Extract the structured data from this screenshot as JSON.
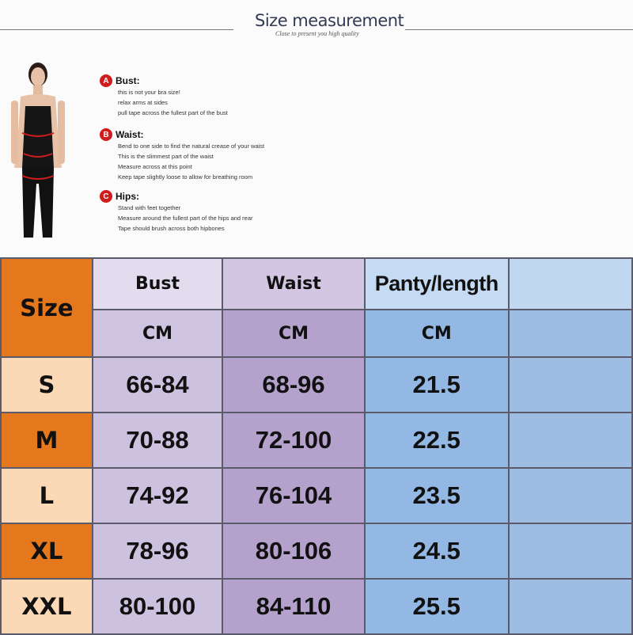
{
  "header": {
    "title": "Size measurement",
    "subtitle": "Close to present you high quality"
  },
  "guide": [
    {
      "badge": "A",
      "title": "Bust:",
      "lines": [
        "this is not your bra size!",
        "relax arms at sides",
        "pull tape across the fullest part of the bust"
      ]
    },
    {
      "badge": "B",
      "title": "Waist:",
      "lines": [
        "Bend  to one side to find the natural crease of your waist",
        "This is the slimmest part of the waist",
        "Measure across at this point",
        "Keep tape slightly loose to allow for breathing room"
      ]
    },
    {
      "badge": "C",
      "title": "Hips:",
      "lines": [
        "Stand with feet together",
        "Measure around the fullest part of the hips and rear",
        "Tape should brush across both hipbones"
      ]
    }
  ],
  "table": {
    "columns": [
      "Size",
      "Bust",
      "Waist",
      "Panty/length",
      ""
    ],
    "units": [
      "CM",
      "CM",
      "CM"
    ],
    "rows": [
      {
        "size": "S",
        "bust": "66-84",
        "waist": "68-96",
        "length": "21.5"
      },
      {
        "size": "M",
        "bust": "70-88",
        "waist": "72-100",
        "length": "22.5"
      },
      {
        "size": "L",
        "bust": "74-92",
        "waist": "76-104",
        "length": "23.5"
      },
      {
        "size": "XL",
        "bust": "78-96",
        "waist": "80-106",
        "length": "24.5"
      },
      {
        "size": "XXL",
        "bust": "80-100",
        "waist": "84-110",
        "length": "25.5"
      }
    ]
  },
  "colors": {
    "orange": "#e5781c",
    "peach": "#fbd8b6",
    "bust": "#cdc1e0",
    "waist": "#b4a2cd",
    "length": "#93b8e4",
    "extra": "#9dbde2"
  }
}
